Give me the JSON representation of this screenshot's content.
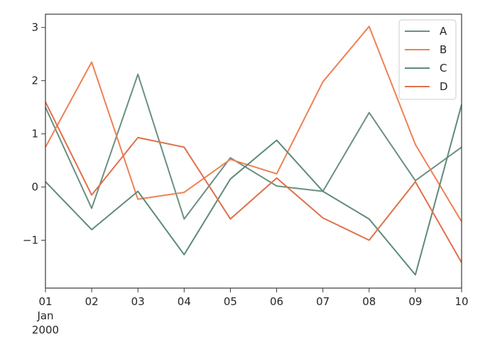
{
  "chart_data": {
    "type": "line",
    "title": "",
    "xlabel": "",
    "ylabel": "",
    "x": [
      "01",
      "02",
      "03",
      "04",
      "05",
      "06",
      "07",
      "08",
      "09",
      "10"
    ],
    "x_sublabels": [
      "Jan",
      "2000"
    ],
    "ylim": [
      -1.9,
      3.25
    ],
    "yticks": [
      -1,
      0,
      1,
      2,
      3
    ],
    "ytick_labels": [
      "−1",
      "0",
      "1",
      "2",
      "3"
    ],
    "grid": false,
    "legend_position": "top-right",
    "series": [
      {
        "name": "A",
        "color": "#6b9080",
        "values": [
          1.5,
          -0.4,
          2.12,
          -0.6,
          0.55,
          0.02,
          -0.08,
          1.4,
          0.12,
          0.75
        ]
      },
      {
        "name": "B",
        "color": "#ee8154",
        "values": [
          0.75,
          2.35,
          -0.23,
          -0.1,
          0.52,
          0.25,
          1.98,
          3.02,
          0.8,
          -0.65
        ]
      },
      {
        "name": "C",
        "color": "#5e8b79",
        "values": [
          0.1,
          -0.8,
          -0.08,
          -1.27,
          0.15,
          0.88,
          -0.08,
          -0.6,
          -1.65,
          1.55
        ]
      },
      {
        "name": "D",
        "color": "#e0704a",
        "values": [
          1.6,
          -0.15,
          0.93,
          0.75,
          -0.6,
          0.17,
          -0.58,
          -1.0,
          0.1,
          -1.42
        ]
      }
    ]
  }
}
